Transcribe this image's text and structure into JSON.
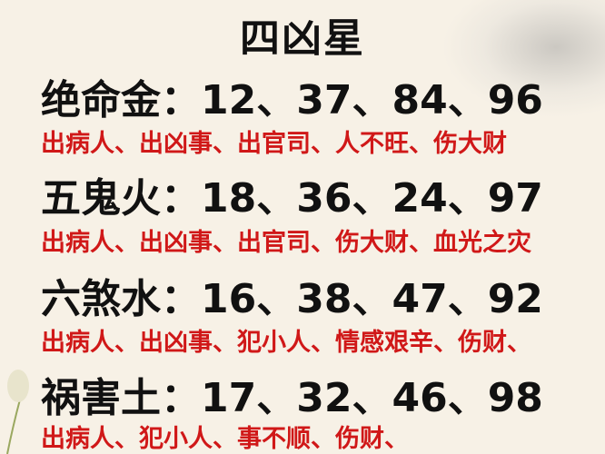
{
  "title": "四凶星",
  "colors": {
    "heading": "#111111",
    "description": "#d01818",
    "background": "#f7f1e6"
  },
  "stars": [
    {
      "label": "绝命金：12、37、84、96",
      "description": "出病人、出凶事、出官司、人不旺、伤大财"
    },
    {
      "label": "五鬼火：18、36、24、97",
      "description": "出病人、出凶事、出官司、伤大财、血光之灾"
    },
    {
      "label": "六煞水：16、38、47、92",
      "description": "出病人、出凶事、犯小人、情感艰辛、伤财、"
    },
    {
      "label": "祸害土：17、32、46、98",
      "description": "出病人、犯小人、事不顺、伤财、"
    }
  ]
}
